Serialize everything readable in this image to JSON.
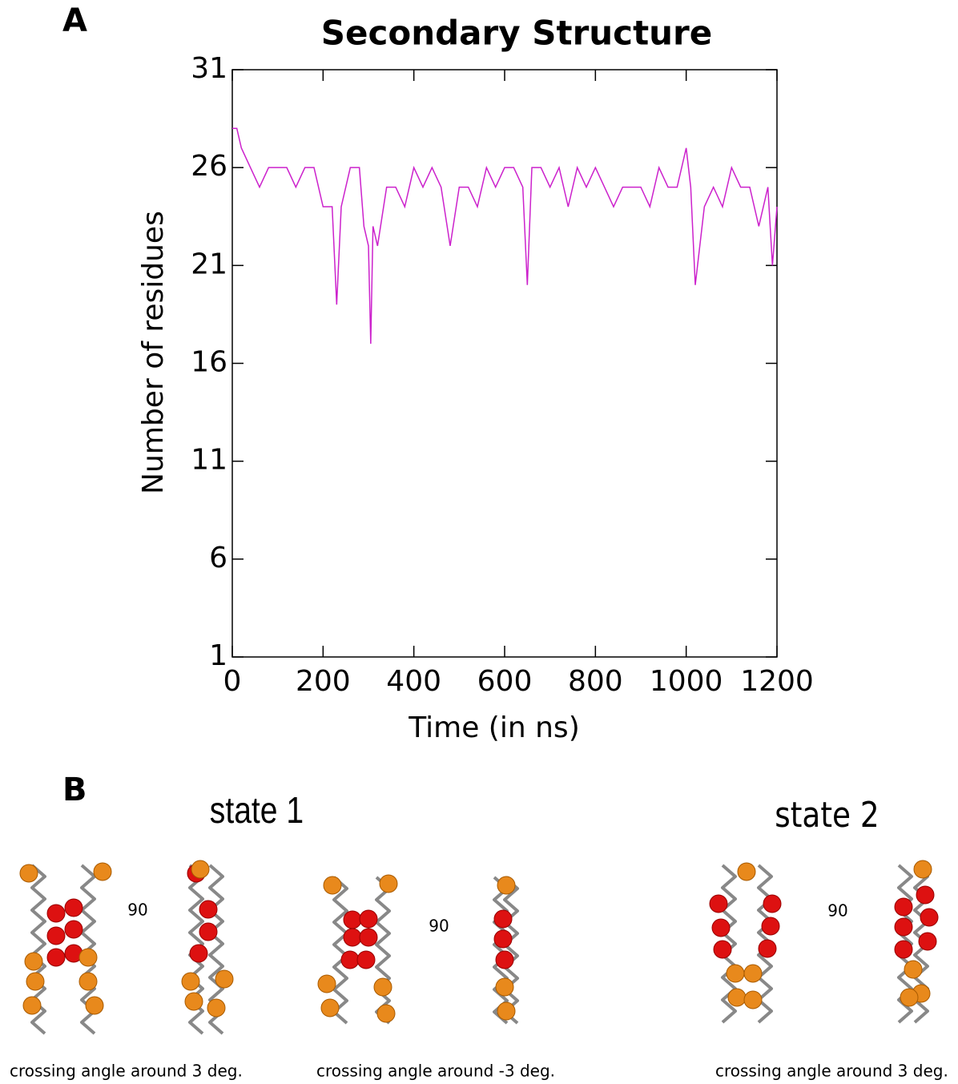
{
  "chart_data": {
    "type": "line",
    "title": "Secondary Structure",
    "x_label": "Time (in ns)",
    "y_label": "Number of residues",
    "x": [
      0,
      10,
      20,
      40,
      60,
      80,
      100,
      120,
      140,
      160,
      180,
      200,
      220,
      230,
      240,
      260,
      280,
      290,
      300,
      305,
      310,
      320,
      340,
      360,
      380,
      400,
      420,
      440,
      460,
      480,
      500,
      520,
      540,
      560,
      580,
      600,
      620,
      640,
      650,
      660,
      680,
      700,
      720,
      740,
      760,
      780,
      800,
      820,
      840,
      860,
      880,
      900,
      920,
      940,
      960,
      980,
      1000,
      1010,
      1020,
      1040,
      1060,
      1080,
      1100,
      1120,
      1140,
      1160,
      1180,
      1190,
      1200
    ],
    "series": [
      {
        "name": "Secondary Structure",
        "color": "#cc22cc",
        "values": [
          28,
          28,
          27,
          26,
          25,
          26,
          26,
          26,
          25,
          26,
          26,
          24,
          24,
          19,
          24,
          26,
          26,
          23,
          22,
          17,
          23,
          22,
          25,
          25,
          24,
          26,
          25,
          26,
          25,
          22,
          25,
          25,
          24,
          26,
          25,
          26,
          26,
          25,
          20,
          26,
          26,
          25,
          26,
          24,
          26,
          25,
          26,
          25,
          24,
          25,
          25,
          25,
          24,
          26,
          25,
          25,
          27,
          25,
          20,
          24,
          25,
          24,
          26,
          25,
          25,
          23,
          25,
          21,
          24
        ]
      }
    ],
    "xlim": [
      0,
      1200
    ],
    "xticks": [
      0,
      200,
      400,
      600,
      800,
      1000,
      1200
    ],
    "ylim": [
      1,
      31
    ],
    "yticks": [
      1,
      6,
      11,
      16,
      21,
      26,
      31
    ],
    "grid": false
  },
  "panels": {
    "a_label": "A",
    "b_label": "B"
  },
  "panel_b": {
    "state1": "state 1",
    "state2": "state 2",
    "rotations": [
      "90",
      "90",
      "90"
    ],
    "captions": [
      "crossing angle around 3 deg.",
      "crossing angle around -3 deg.",
      "crossing angle around 3 deg."
    ]
  }
}
